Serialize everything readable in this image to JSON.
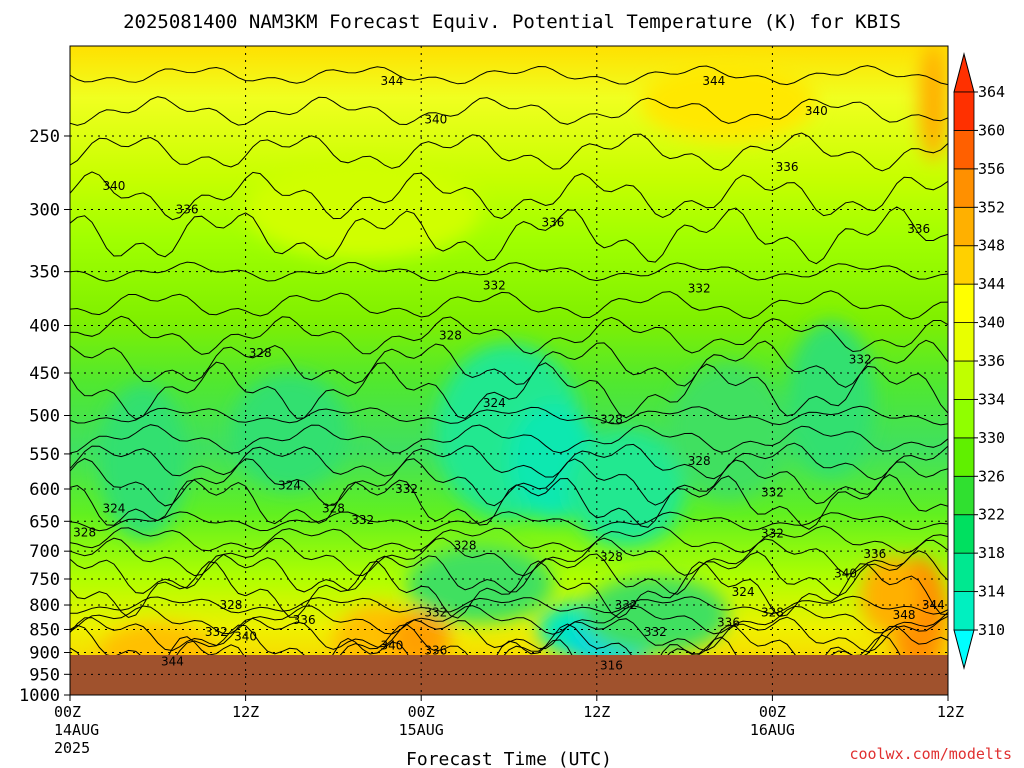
{
  "chart_data": {
    "type": "heatmap",
    "title": "2025081400 NAM3KM Forecast Equiv. Potential Temperature (K) for KBIS",
    "xlabel": "Forecast Time (UTC)",
    "credit": "coolwx.com/modelts",
    "y_axis": {
      "unit": "hPa",
      "scale": "log",
      "inverted": true,
      "ticks": [
        250,
        300,
        350,
        400,
        450,
        500,
        550,
        600,
        650,
        700,
        750,
        800,
        850,
        900,
        950,
        1000
      ],
      "range": [
        1000,
        200
      ]
    },
    "x_axis": {
      "range_hours": [
        0,
        60
      ],
      "ticks": [
        {
          "hour": 0,
          "label": "00Z",
          "label2": "14AUG",
          "label3": "2025"
        },
        {
          "hour": 12,
          "label": "12Z",
          "label2": "",
          "label3": ""
        },
        {
          "hour": 24,
          "label": "00Z",
          "label2": "15AUG",
          "label3": ""
        },
        {
          "hour": 36,
          "label": "12Z",
          "label2": "",
          "label3": ""
        },
        {
          "hour": 48,
          "label": "00Z",
          "label2": "16AUG",
          "label3": ""
        },
        {
          "hour": 60,
          "label": "12Z",
          "label2": "",
          "label3": ""
        }
      ]
    },
    "grid": true,
    "surface_pressure_hPa": 950,
    "colorbar": {
      "unit": "K",
      "levels": [
        310,
        314,
        318,
        322,
        326,
        330,
        334,
        336,
        340,
        344,
        348,
        352,
        356,
        360,
        364
      ],
      "colors": [
        "#00ffff",
        "#00f0c0",
        "#00e890",
        "#00e060",
        "#30e030",
        "#60f000",
        "#90ff00",
        "#c0ff00",
        "#e8ff00",
        "#ffff00",
        "#ffd000",
        "#ffb000",
        "#ff9000",
        "#ff6000",
        "#ff3000"
      ]
    },
    "contour_labels": [
      {
        "value": "344",
        "hour": 22,
        "p": 218
      },
      {
        "value": "344",
        "hour": 44,
        "p": 218
      },
      {
        "value": "340",
        "hour": 25,
        "p": 240
      },
      {
        "value": "340",
        "hour": 51,
        "p": 235
      },
      {
        "value": "340",
        "hour": 3,
        "p": 283
      },
      {
        "value": "336",
        "hour": 8,
        "p": 300
      },
      {
        "value": "336",
        "hour": 33,
        "p": 310
      },
      {
        "value": "336",
        "hour": 49,
        "p": 270
      },
      {
        "value": "336",
        "hour": 58,
        "p": 315
      },
      {
        "value": "332",
        "hour": 29,
        "p": 362
      },
      {
        "value": "332",
        "hour": 43,
        "p": 365
      },
      {
        "value": "328",
        "hour": 26,
        "p": 410
      },
      {
        "value": "328",
        "hour": 13,
        "p": 428
      },
      {
        "value": "332",
        "hour": 54,
        "p": 435
      },
      {
        "value": "324",
        "hour": 29,
        "p": 485
      },
      {
        "value": "328",
        "hour": 37,
        "p": 505
      },
      {
        "value": "328",
        "hour": 43,
        "p": 560
      },
      {
        "value": "324",
        "hour": 15,
        "p": 595
      },
      {
        "value": "332",
        "hour": 23,
        "p": 600
      },
      {
        "value": "332",
        "hour": 48,
        "p": 605
      },
      {
        "value": "324",
        "hour": 3,
        "p": 630
      },
      {
        "value": "328",
        "hour": 18,
        "p": 630
      },
      {
        "value": "332",
        "hour": 20,
        "p": 648
      },
      {
        "value": "328",
        "hour": 1,
        "p": 668
      },
      {
        "value": "328",
        "hour": 27,
        "p": 690
      },
      {
        "value": "332",
        "hour": 48,
        "p": 670
      },
      {
        "value": "336",
        "hour": 55,
        "p": 705
      },
      {
        "value": "328",
        "hour": 37,
        "p": 710
      },
      {
        "value": "340",
        "hour": 53,
        "p": 740
      },
      {
        "value": "324",
        "hour": 46,
        "p": 775
      },
      {
        "value": "328",
        "hour": 11,
        "p": 800
      },
      {
        "value": "332",
        "hour": 38,
        "p": 800
      },
      {
        "value": "328",
        "hour": 48,
        "p": 815
      },
      {
        "value": "336",
        "hour": 16,
        "p": 830
      },
      {
        "value": "332",
        "hour": 25,
        "p": 815
      },
      {
        "value": "336",
        "hour": 45,
        "p": 835
      },
      {
        "value": "348",
        "hour": 57,
        "p": 820
      },
      {
        "value": "344",
        "hour": 59,
        "p": 800
      },
      {
        "value": "332",
        "hour": 10,
        "p": 855
      },
      {
        "value": "340",
        "hour": 12,
        "p": 865
      },
      {
        "value": "332",
        "hour": 40,
        "p": 855
      },
      {
        "value": "340",
        "hour": 22,
        "p": 885
      },
      {
        "value": "336",
        "hour": 25,
        "p": 895
      },
      {
        "value": "344",
        "hour": 7,
        "p": 920
      },
      {
        "value": "316",
        "hour": 37,
        "p": 930
      }
    ]
  }
}
